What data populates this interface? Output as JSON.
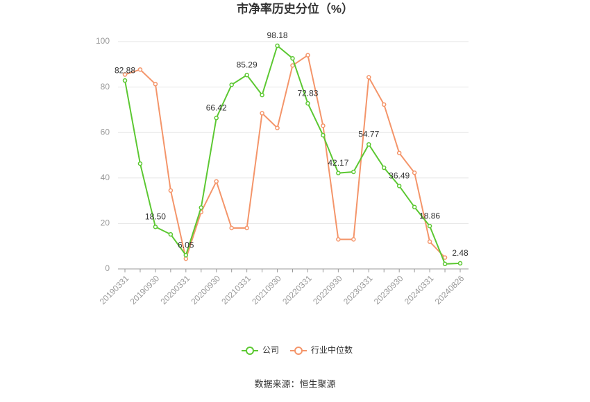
{
  "chart_data": {
    "type": "line",
    "title": "市净率历史分位（%）",
    "categories": [
      "20190331",
      null,
      "20190930",
      null,
      "20200331",
      null,
      "20200930",
      null,
      "20210331",
      null,
      "20210930",
      null,
      "20220331",
      null,
      "20220930",
      null,
      "20230331",
      null,
      "20230930",
      null,
      "20240331",
      null,
      "20240826"
    ],
    "series": [
      {
        "name": "公司",
        "color": "#5cc832",
        "values": [
          82.88,
          46.3,
          18.5,
          15.2,
          6.05,
          27,
          66.42,
          81,
          85.29,
          76.5,
          98.18,
          92.6,
          72.83,
          58.8,
          42.17,
          42.7,
          54.77,
          44.5,
          36.49,
          27.2,
          18.86,
          2.2,
          2.48
        ],
        "value_labels": [
          "82.88",
          null,
          "18.50",
          null,
          "6.05",
          null,
          "66.42",
          null,
          "85.29",
          null,
          "98.18",
          null,
          "72.83",
          null,
          "42.17",
          null,
          "54.77",
          null,
          "36.49",
          null,
          "18.86",
          null,
          "2.48"
        ]
      },
      {
        "name": "行业中位数",
        "color": "#f4956a",
        "values": [
          85.5,
          87.7,
          81.3,
          34.5,
          4.5,
          25,
          38.5,
          18,
          18,
          68.5,
          62,
          89.5,
          94,
          63,
          13,
          13,
          84.3,
          72.3,
          51,
          42.3,
          12,
          5,
          null
        ]
      }
    ],
    "ylim": [
      0,
      100
    ],
    "yticks": [
      0,
      20,
      40,
      60,
      80,
      100
    ],
    "grid": true,
    "legend": "bottom",
    "source": "数据来源：恒生聚源"
  }
}
